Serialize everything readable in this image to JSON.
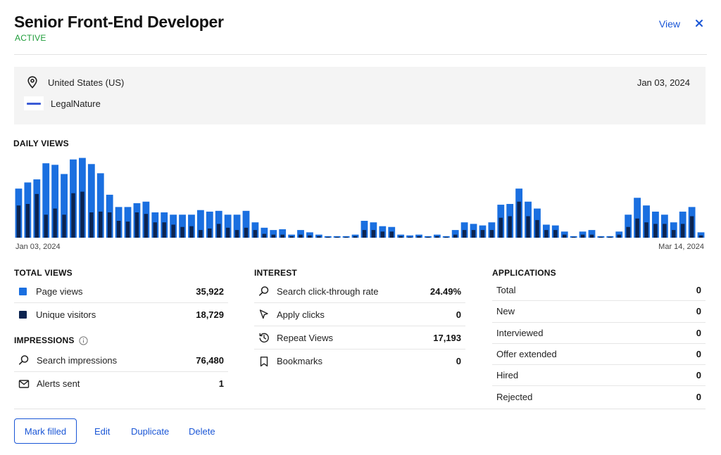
{
  "header": {
    "title": "Senior Front-End Developer",
    "status": "ACTIVE",
    "view_label": "View",
    "close_icon": "close-icon"
  },
  "info": {
    "location": "United States (US)",
    "date": "Jan 03, 2024",
    "company": "LegalNature",
    "location_icon": "map-pin-icon"
  },
  "daily_views": {
    "label": "DAILY VIEWS",
    "start_label": "Jan 03, 2024",
    "end_label": "Mar 14, 2024"
  },
  "chart_data": {
    "type": "bar",
    "title": "DAILY VIEWS",
    "x_range": [
      "Jan 03, 2024",
      "Mar 14, 2024"
    ],
    "series": [
      {
        "name": "Page views",
        "color": "#1a6fe0",
        "values": [
          64,
          72,
          76,
          97,
          95,
          83,
          102,
          104,
          96,
          84,
          56,
          40,
          40,
          45,
          47,
          33,
          33,
          30,
          30,
          30,
          36,
          34,
          35,
          30,
          30,
          35,
          20,
          13,
          10,
          11,
          4,
          10,
          7,
          4,
          2,
          2,
          2,
          4,
          22,
          20,
          15,
          14,
          4,
          3,
          4,
          2,
          4,
          2,
          10,
          20,
          18,
          16,
          20,
          43,
          44,
          64,
          47,
          38,
          17,
          16,
          8,
          2,
          8,
          10,
          2,
          2,
          8,
          30,
          52,
          42,
          34,
          30,
          20,
          34,
          40,
          7
        ],
        "color_name": "blue"
      },
      {
        "name": "Unique visitors",
        "color": "#0c2450",
        "values": [
          42,
          44,
          57,
          30,
          38,
          30,
          58,
          60,
          33,
          34,
          33,
          22,
          21,
          33,
          31,
          20,
          20,
          17,
          14,
          15,
          10,
          12,
          18,
          13,
          10,
          13,
          10,
          5,
          4,
          4,
          2,
          4,
          3,
          2,
          1,
          1,
          1,
          2,
          10,
          10,
          8,
          8,
          2,
          1,
          2,
          1,
          2,
          1,
          4,
          10,
          10,
          10,
          10,
          26,
          28,
          47,
          28,
          23,
          10,
          10,
          4,
          1,
          4,
          4,
          1,
          1,
          4,
          14,
          25,
          20,
          18,
          18,
          10,
          18,
          28,
          3
        ],
        "color_name": "navy"
      }
    ],
    "ylim": [
      0,
      110
    ],
    "grid": false,
    "legend": "none"
  },
  "total_views": {
    "label": "TOTAL VIEWS",
    "rows": [
      {
        "label": "Page views",
        "value": "35,922"
      },
      {
        "label": "Unique visitors",
        "value": "18,729"
      }
    ]
  },
  "impressions": {
    "label": "IMPRESSIONS",
    "rows": [
      {
        "label": "Search impressions",
        "value": "76,480"
      },
      {
        "label": "Alerts sent",
        "value": "1"
      }
    ]
  },
  "interest": {
    "label": "INTEREST",
    "rows": [
      {
        "label": "Search click-through rate",
        "value": "24.49%"
      },
      {
        "label": "Apply clicks",
        "value": "0"
      },
      {
        "label": "Repeat Views",
        "value": "17,193"
      },
      {
        "label": "Bookmarks",
        "value": "0"
      }
    ]
  },
  "applications": {
    "label": "APPLICATIONS",
    "rows": [
      {
        "label": "Total",
        "value": "0"
      },
      {
        "label": "New",
        "value": "0"
      },
      {
        "label": "Interviewed",
        "value": "0"
      },
      {
        "label": "Offer extended",
        "value": "0"
      },
      {
        "label": "Hired",
        "value": "0"
      },
      {
        "label": "Rejected",
        "value": "0"
      }
    ]
  },
  "actions": {
    "mark_filled": "Mark filled",
    "edit": "Edit",
    "duplicate": "Duplicate",
    "delete": "Delete"
  }
}
